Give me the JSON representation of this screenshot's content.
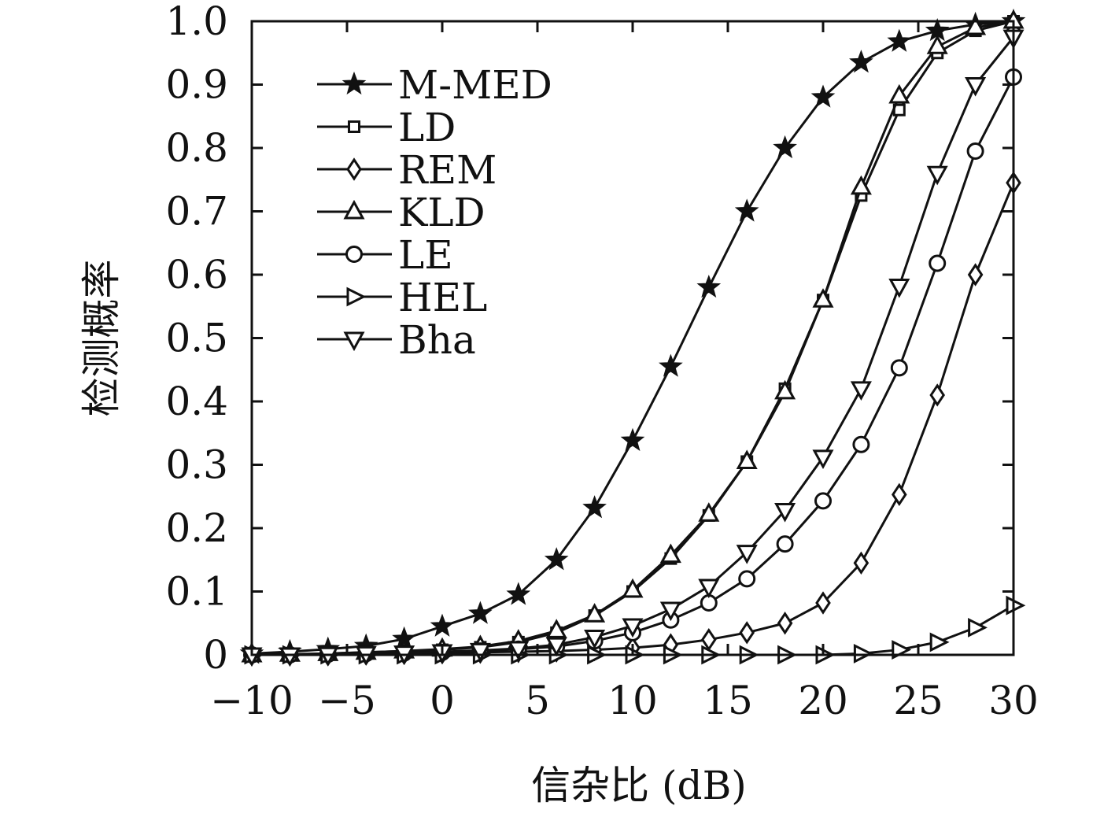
{
  "chart_data": {
    "type": "line",
    "title": "",
    "xlabel": "信杂比 (dB)",
    "ylabel": "检测概率",
    "xlim": [
      -10,
      30
    ],
    "ylim": [
      0,
      1
    ],
    "x_ticks": [
      -10,
      -5,
      0,
      5,
      10,
      15,
      20,
      25,
      30
    ],
    "x_tick_labels": [
      "−10",
      "−5",
      "0",
      "5",
      "10",
      "15",
      "20",
      "25",
      "30"
    ],
    "y_ticks": [
      0,
      0.1,
      0.2,
      0.3,
      0.4,
      0.5,
      0.6,
      0.7,
      0.8,
      0.9,
      1.0
    ],
    "y_tick_labels": [
      "0",
      "0.1",
      "0.2",
      "0.3",
      "0.4",
      "0.5",
      "0.6",
      "0.7",
      "0.8",
      "0.9",
      "1.0"
    ],
    "grid": false,
    "legend_position": "top-left",
    "line_color": "#111111",
    "x": [
      -10,
      -8,
      -6,
      -4,
      -2,
      0,
      2,
      4,
      6,
      8,
      10,
      12,
      14,
      16,
      18,
      20,
      22,
      24,
      26,
      28,
      30
    ],
    "series": [
      {
        "name": "M-MED",
        "marker": "star",
        "values": [
          0.002,
          0.005,
          0.009,
          0.014,
          0.025,
          0.045,
          0.065,
          0.095,
          0.15,
          0.232,
          0.338,
          0.455,
          0.58,
          0.7,
          0.8,
          0.88,
          0.935,
          0.968,
          0.985,
          0.995,
          1.0
        ]
      },
      {
        "name": "LD",
        "marker": "square",
        "values": [
          0.0,
          0.001,
          0.002,
          0.004,
          0.006,
          0.008,
          0.012,
          0.02,
          0.035,
          0.062,
          0.1,
          0.152,
          0.22,
          0.305,
          0.42,
          0.56,
          0.725,
          0.86,
          0.95,
          0.985,
          1.0
        ]
      },
      {
        "name": "REM",
        "marker": "diamond",
        "values": [
          0.0,
          0.0,
          0.0,
          0.001,
          0.002,
          0.003,
          0.004,
          0.005,
          0.006,
          0.008,
          0.011,
          0.016,
          0.024,
          0.035,
          0.05,
          0.082,
          0.145,
          0.253,
          0.41,
          0.6,
          0.745
        ]
      },
      {
        "name": "KLD",
        "marker": "triangle-up",
        "values": [
          0.0,
          0.001,
          0.002,
          0.004,
          0.006,
          0.009,
          0.013,
          0.022,
          0.038,
          0.063,
          0.102,
          0.157,
          0.222,
          0.305,
          0.415,
          0.56,
          0.738,
          0.882,
          0.96,
          0.99,
          1.0
        ]
      },
      {
        "name": "LE",
        "marker": "circle",
        "values": [
          0.0,
          0.0,
          0.001,
          0.002,
          0.003,
          0.004,
          0.006,
          0.009,
          0.013,
          0.022,
          0.035,
          0.055,
          0.082,
          0.12,
          0.175,
          0.243,
          0.332,
          0.453,
          0.618,
          0.795,
          0.912
        ]
      },
      {
        "name": "HEL",
        "marker": "triangle-right",
        "values": [
          0.0,
          0.0,
          0.0,
          0.0,
          0.0,
          0.0,
          0.0,
          0.0,
          0.0,
          0.0,
          0.0,
          0.0,
          0.0,
          0.0,
          0.0,
          0.0,
          0.002,
          0.008,
          0.02,
          0.043,
          0.078
        ]
      },
      {
        "name": "Bha",
        "marker": "triangle-down",
        "values": [
          0.0,
          0.0,
          0.001,
          0.002,
          0.003,
          0.005,
          0.007,
          0.01,
          0.016,
          0.028,
          0.046,
          0.072,
          0.108,
          0.162,
          0.228,
          0.312,
          0.42,
          0.582,
          0.76,
          0.9,
          0.975
        ]
      }
    ]
  }
}
